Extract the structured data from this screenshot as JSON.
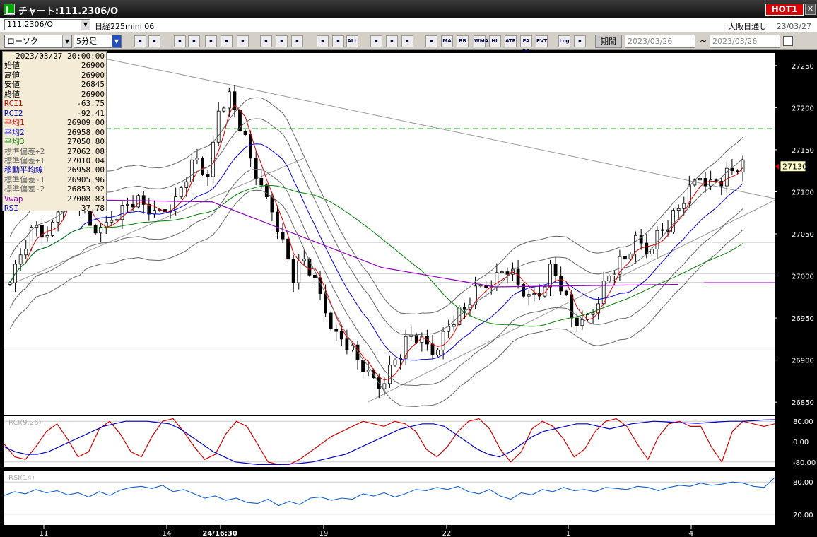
{
  "window": {
    "title": "チャート:111.2306/O",
    "hot_label": "HOT1",
    "close_label": "✕"
  },
  "symbol_bar": {
    "symbol": "111.2306/O",
    "name": "日経225mini 06",
    "session": "大阪日通し",
    "date": "23/03/27"
  },
  "toolbar": {
    "chart_type": "ローソク",
    "interval": "5分足",
    "buttons": [
      "zoom-in",
      "bar-spacing",
      "arrow-down",
      "zoom-fit",
      "pattern",
      "cross",
      "tool",
      "pen",
      "cursor",
      "undo",
      "bar1",
      "bar2",
      "all",
      "cross2",
      "color",
      "palette",
      "ichimoku",
      "ma",
      "bb",
      "wma",
      "hl",
      "atr",
      "pa",
      "pvt",
      "log",
      "export"
    ],
    "button_labels": {
      "all": "ALL",
      "ma": "MA",
      "bb": "BB",
      "wma": "WMA",
      "hl": "HL",
      "atr": "ATR",
      "pa": "PA\nRA",
      "pvt": "PVT",
      "log": "Log"
    },
    "period_label": "期間",
    "date_from": "2023/03/26",
    "date_to": "2023/03/26",
    "tilde": "~"
  },
  "info_panel": {
    "datetime": "2023/03/27  20:00:00",
    "rows": [
      {
        "label": "始値",
        "value": "26900",
        "color": "#000"
      },
      {
        "label": "高値",
        "value": "26900",
        "color": "#000"
      },
      {
        "label": "安値",
        "value": "26845",
        "color": "#000"
      },
      {
        "label": "終値",
        "value": "26900",
        "color": "#000"
      },
      {
        "label": "RCI1",
        "value": "-63.75",
        "color": "#d00000"
      },
      {
        "label": "RCI2",
        "value": "-92.41",
        "color": "#0000c0"
      },
      {
        "label": "平均1",
        "value": "26909.00",
        "color": "#e00000"
      },
      {
        "label": "平均2",
        "value": "26958.00",
        "color": "#0000e0"
      },
      {
        "label": "平均3",
        "value": "27050.80",
        "color": "#008000"
      },
      {
        "label": "標準偏差+2",
        "value": "27062.08",
        "color": "#666"
      },
      {
        "label": "標準偏差+1",
        "value": "27010.04",
        "color": "#666"
      },
      {
        "label": "移動平均線",
        "value": "26958.00",
        "color": "#0000c0"
      },
      {
        "label": "標準偏差-1",
        "value": "26905.96",
        "color": "#666"
      },
      {
        "label": "標準偏差-2",
        "value": "26853.92",
        "color": "#666"
      },
      {
        "label": "Vwap",
        "value": "27008.83",
        "color": "#9000c0"
      },
      {
        "label": "RSI",
        "value": "37.78",
        "color": "#0000c0"
      }
    ]
  },
  "colors": {
    "candle_up": "#ffffff",
    "candle_down": "#000000",
    "chart_bg": "#ffffff",
    "ma1": "#e00000",
    "ma2": "#0000e0",
    "ma3": "#008000",
    "vwap": "#9000c0",
    "bands": "#666666",
    "dashed_level": "#008000",
    "last_price_bg": "#ffffcc"
  },
  "chart_data": [
    {
      "type": "candlestick",
      "name": "price",
      "ylim": [
        26835,
        27265
      ],
      "yticks": [
        27250,
        27200,
        27150,
        27100,
        27050,
        27000,
        26950,
        26900,
        26850
      ],
      "last_price": 27130,
      "dashed_level": 27175,
      "x_labels": [
        "11",
        "14",
        "24/16:30",
        "19",
        "22",
        "1",
        "4"
      ],
      "close_path": [
        26990,
        27010,
        27040,
        27060,
        27040,
        27080,
        27100,
        27090,
        27060,
        27050,
        27070,
        27080,
        27090,
        27085,
        27070,
        27080,
        27090,
        27120,
        27140,
        27110,
        27200,
        27215,
        27180,
        27140,
        27100,
        27080,
        27040,
        27000,
        27020,
        26990,
        26960,
        26930,
        26920,
        26900,
        26880,
        26870,
        26890,
        26910,
        26930,
        26920,
        26910,
        26930,
        26950,
        26960,
        26980,
        26990,
        27000,
        27010,
        26990,
        26970,
        26980,
        27010,
        26990,
        26950,
        26940,
        26960,
        26990,
        27010,
        27020,
        27040,
        27030,
        27050,
        27060,
        27080,
        27100,
        27120,
        27110,
        27115,
        27125,
        27130
      ],
      "series": [
        {
          "name": "平均1",
          "color": "#e00000"
        },
        {
          "name": "平均2",
          "color": "#0000e0"
        },
        {
          "name": "平均3",
          "color": "#008000"
        },
        {
          "name": "Vwap",
          "color": "#9000c0"
        },
        {
          "name": "標準偏差",
          "color": "#666666"
        }
      ]
    },
    {
      "type": "line",
      "name": "RCI",
      "label": "RCI(9,26)",
      "ylim": [
        -100,
        100
      ],
      "yticks": [
        80.0,
        0.0,
        -80.0
      ],
      "series": [
        {
          "name": "RCI1",
          "color": "#d00000",
          "values": [
            -10,
            -60,
            -70,
            -20,
            40,
            70,
            10,
            -60,
            -40,
            50,
            80,
            30,
            -40,
            -60,
            20,
            80,
            90,
            40,
            -20,
            -70,
            -50,
            30,
            80,
            60,
            -10,
            -80,
            -90,
            -90,
            -70,
            -40,
            -10,
            20,
            40,
            60,
            80,
            70,
            60,
            80,
            70,
            40,
            -30,
            -60,
            -20,
            40,
            80,
            90,
            50,
            -30,
            -80,
            -40,
            50,
            80,
            60,
            10,
            -60,
            -30,
            40,
            80,
            90,
            60,
            -10,
            -70,
            20,
            70,
            80,
            60,
            60,
            -20,
            -80,
            40,
            80,
            70,
            60,
            70
          ]
        },
        {
          "name": "RCI2",
          "color": "#0000c0",
          "values": [
            -20,
            -40,
            -50,
            -50,
            -40,
            -20,
            0,
            20,
            40,
            60,
            70,
            80,
            80,
            80,
            75,
            70,
            50,
            20,
            -10,
            -40,
            -60,
            -80,
            -85,
            -90,
            -90,
            -90,
            -88,
            -85,
            -80,
            -70,
            -60,
            -50,
            -30,
            -10,
            10,
            30,
            50,
            60,
            70,
            70,
            60,
            30,
            0,
            -30,
            -50,
            -60,
            -40,
            -10,
            20,
            40,
            50,
            60,
            70,
            70,
            60,
            50,
            60,
            70,
            75,
            80,
            78,
            75,
            74,
            72,
            75,
            78,
            80,
            80,
            82,
            85,
            86
          ]
        }
      ]
    },
    {
      "type": "line",
      "name": "RSI",
      "label": "RSI(14)",
      "ylim": [
        0,
        100
      ],
      "yticks": [
        80.0,
        20.0
      ],
      "series": [
        {
          "name": "RSI",
          "color": "#1060d0",
          "values": [
            55,
            62,
            58,
            66,
            60,
            64,
            56,
            60,
            52,
            62,
            55,
            65,
            70,
            72,
            68,
            74,
            62,
            66,
            58,
            50,
            54,
            46,
            50,
            42,
            40,
            48,
            36,
            44,
            38,
            50,
            52,
            46,
            50,
            48,
            58,
            54,
            60,
            52,
            58,
            66,
            64,
            70,
            66,
            72,
            62,
            58,
            66,
            54,
            48,
            60,
            56,
            66,
            62,
            70,
            64,
            66,
            62,
            70,
            68,
            66,
            72,
            70,
            64,
            70,
            74,
            72,
            78,
            74,
            76,
            80,
            78,
            72,
            70,
            88
          ]
        }
      ]
    }
  ]
}
